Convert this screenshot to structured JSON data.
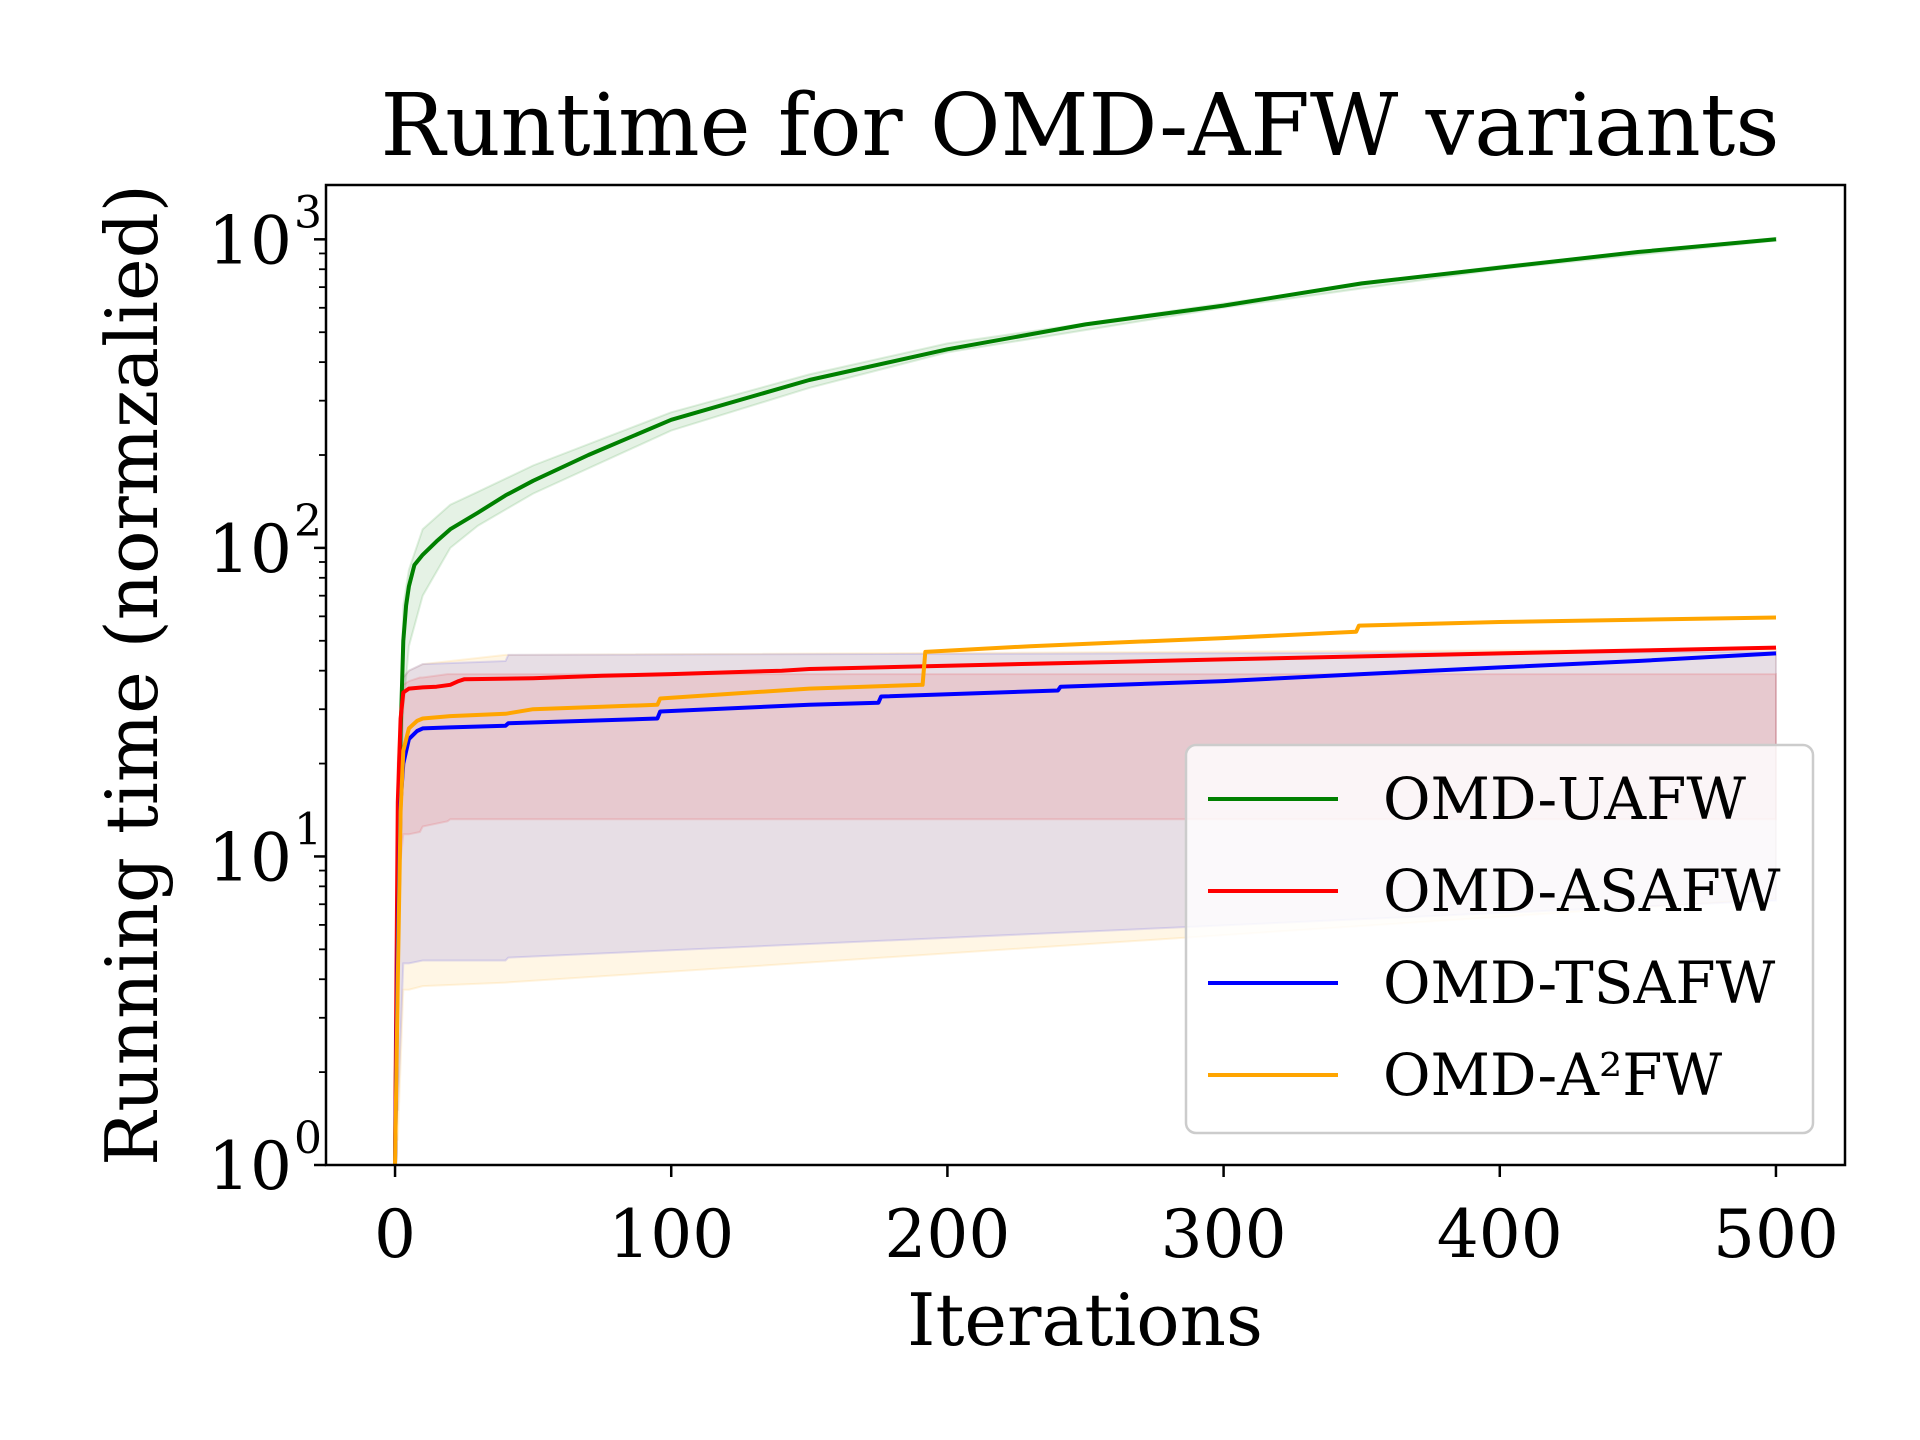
{
  "chart_data": {
    "type": "line",
    "title": "Runtime for OMD-AFW variants",
    "xlabel": "Iterations",
    "ylabel": "Running time (normzalied)",
    "xlim": [
      -25,
      525
    ],
    "ylim": [
      1,
      1500
    ],
    "yscale": "log",
    "xticks": [
      {
        "value": 0,
        "label": "0"
      },
      {
        "value": 100,
        "label": "100"
      },
      {
        "value": 200,
        "label": "200"
      },
      {
        "value": 300,
        "label": "300"
      },
      {
        "value": 400,
        "label": "400"
      },
      {
        "value": 500,
        "label": "500"
      }
    ],
    "yticks": [
      {
        "value": 1,
        "base": "10",
        "exp": "0"
      },
      {
        "value": 10,
        "base": "10",
        "exp": "1"
      },
      {
        "value": 100,
        "base": "10",
        "exp": "2"
      },
      {
        "value": 1000,
        "base": "10",
        "exp": "3"
      }
    ],
    "grid": false,
    "legend_position": "lower-right",
    "series": [
      {
        "name": "OMD-UAFW",
        "color": "#008000",
        "x": [
          0,
          1,
          2,
          3,
          4,
          5,
          7,
          10,
          15,
          20,
          30,
          40,
          50,
          70,
          100,
          150,
          200,
          250,
          300,
          350,
          400,
          450,
          500
        ],
        "y": [
          1,
          8,
          25,
          50,
          65,
          75,
          88,
          95,
          105,
          115,
          130,
          148,
          165,
          200,
          260,
          350,
          440,
          530,
          610,
          720,
          810,
          910,
          1000
        ],
        "band": {
          "x": [
            1,
            3,
            5,
            10,
            20,
            30,
            50,
            100,
            150,
            200,
            300,
            400,
            500
          ],
          "lower": [
            5,
            30,
            48,
            70,
            100,
            118,
            150,
            240,
            330,
            430,
            600,
            800,
            990
          ],
          "upper": [
            12,
            65,
            85,
            115,
            138,
            152,
            185,
            275,
            365,
            460,
            620,
            820,
            1010
          ]
        }
      },
      {
        "name": "OMD-ASAFW",
        "color": "#ff0000",
        "x": [
          0,
          1,
          2,
          3,
          5,
          10,
          15,
          20,
          23,
          25,
          50,
          75,
          100,
          140,
          150,
          200,
          250,
          300,
          350,
          400,
          450,
          500
        ],
        "y": [
          1,
          15,
          28,
          34,
          35,
          35.3,
          35.5,
          36,
          37,
          37.5,
          37.8,
          38.5,
          39,
          40,
          40.5,
          41.5,
          42.5,
          43.5,
          44.5,
          45.5,
          46.5,
          47.5
        ],
        "band": {
          "x": [
            1,
            3,
            5,
            9,
            10,
            19,
            20,
            500
          ],
          "lower": [
            8,
            11.8,
            11.8,
            12,
            12.5,
            13,
            13.2,
            13.2
          ],
          "upper": [
            20,
            36,
            37,
            38,
            38,
            39,
            39,
            39
          ]
        }
      },
      {
        "name": "OMD-TSAFW",
        "color": "#0000ff",
        "x": [
          0,
          1,
          2,
          3,
          5,
          8,
          10,
          20,
          40,
          41,
          95,
          96,
          150,
          175,
          176,
          240,
          241,
          300,
          350,
          400,
          450,
          500
        ],
        "y": [
          1,
          5,
          15,
          20,
          24,
          25.5,
          26,
          26.2,
          26.5,
          27,
          28,
          29.5,
          31,
          31.5,
          33,
          34.5,
          35.5,
          37,
          39,
          41,
          43,
          45.5
        ],
        "band": {
          "x": [
            1,
            3,
            5,
            10,
            40,
            41,
            500
          ],
          "lower": [
            1.5,
            4.5,
            4.5,
            4.6,
            4.6,
            4.7,
            7.2
          ],
          "upper": [
            20,
            38,
            40,
            42,
            43,
            45,
            46
          ]
        }
      },
      {
        "name": "OMD-A²FW",
        "color": "#ffa500",
        "x": [
          0,
          1,
          2,
          3,
          5,
          8,
          10,
          20,
          40,
          50,
          95,
          96,
          150,
          191,
          192,
          230,
          300,
          348,
          349,
          400,
          450,
          500
        ],
        "y": [
          1,
          4,
          14,
          22,
          26,
          27.5,
          28,
          28.5,
          29,
          30,
          31,
          32.5,
          35,
          36,
          46,
          48,
          51,
          53.5,
          56,
          57.5,
          58.5,
          59.5
        ],
        "band": {
          "x": [
            1,
            3,
            5,
            10,
            40,
            500
          ],
          "lower": [
            1.2,
            3.7,
            3.7,
            3.8,
            3.9,
            7.3
          ],
          "upper": [
            22,
            38,
            40,
            42,
            45,
            47
          ]
        }
      }
    ]
  }
}
